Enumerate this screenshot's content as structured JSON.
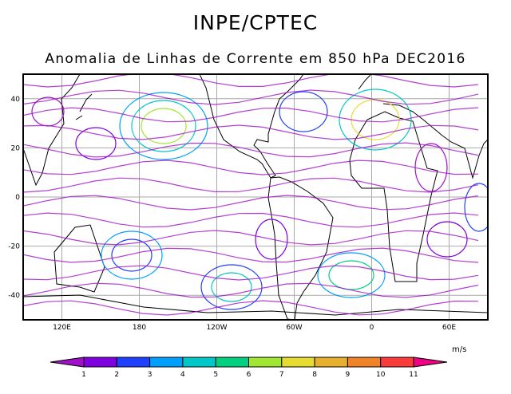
{
  "header": {
    "title": "INPE/CPTEC",
    "subtitle": "Anomalia de Linhas de Corrente em 850 hPa DEC2016"
  },
  "map": {
    "lon_labels": [
      "120E",
      "180",
      "120W",
      "60W",
      "0",
      "60E"
    ],
    "lat_labels": [
      "40",
      "20",
      "0",
      "-20",
      "-40"
    ],
    "lon_range": [
      90,
      450
    ],
    "lat_range": [
      -50,
      50
    ]
  },
  "colorbar": {
    "unit": "m/s",
    "tick_labels": [
      "1",
      "2",
      "3",
      "4",
      "5",
      "6",
      "7",
      "8",
      "9",
      "10",
      "11"
    ],
    "colors": [
      "#a010c8",
      "#8000e0",
      "#2040ff",
      "#00a0ff",
      "#00c8c8",
      "#00d080",
      "#a0e632",
      "#e6dc32",
      "#e6af2d",
      "#f08228",
      "#fa3c3c",
      "#f00082"
    ]
  }
}
